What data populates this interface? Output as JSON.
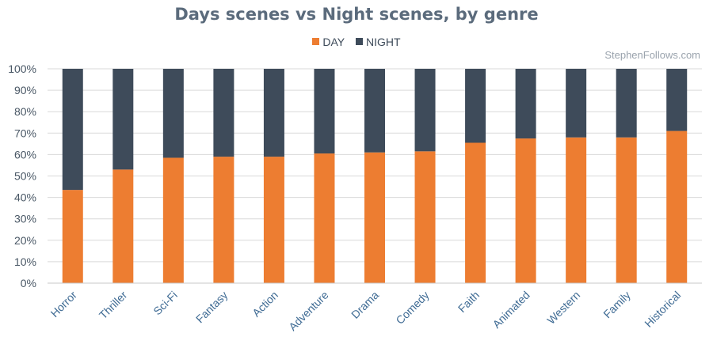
{
  "chart_data": {
    "type": "bar",
    "stacked": true,
    "title": "Days scenes vs Night scenes, by genre",
    "watermark": "StephenFollows.com",
    "categories": [
      "Horror",
      "Thriller",
      "Sci-Fi",
      "Fantasy",
      "Action",
      "Adventure",
      "Drama",
      "Comedy",
      "Faith",
      "Animated",
      "Western",
      "Family",
      "Historical"
    ],
    "series": [
      {
        "name": "DAY",
        "color": "#ed7d31",
        "values": [
          43.5,
          53,
          58.5,
          59,
          59,
          60.5,
          61,
          61.5,
          65.5,
          67.5,
          68,
          68,
          71
        ]
      },
      {
        "name": "NIGHT",
        "color": "#3e4b5a",
        "values": [
          56.5,
          47,
          41.5,
          41,
          41,
          39.5,
          39,
          38.5,
          34.5,
          32.5,
          32,
          32,
          29
        ]
      }
    ],
    "yticks": [
      "0%",
      "10%",
      "20%",
      "30%",
      "40%",
      "50%",
      "60%",
      "70%",
      "80%",
      "90%",
      "100%"
    ],
    "ylim": [
      0,
      100
    ],
    "grid": true,
    "legend_position": "top-center"
  }
}
